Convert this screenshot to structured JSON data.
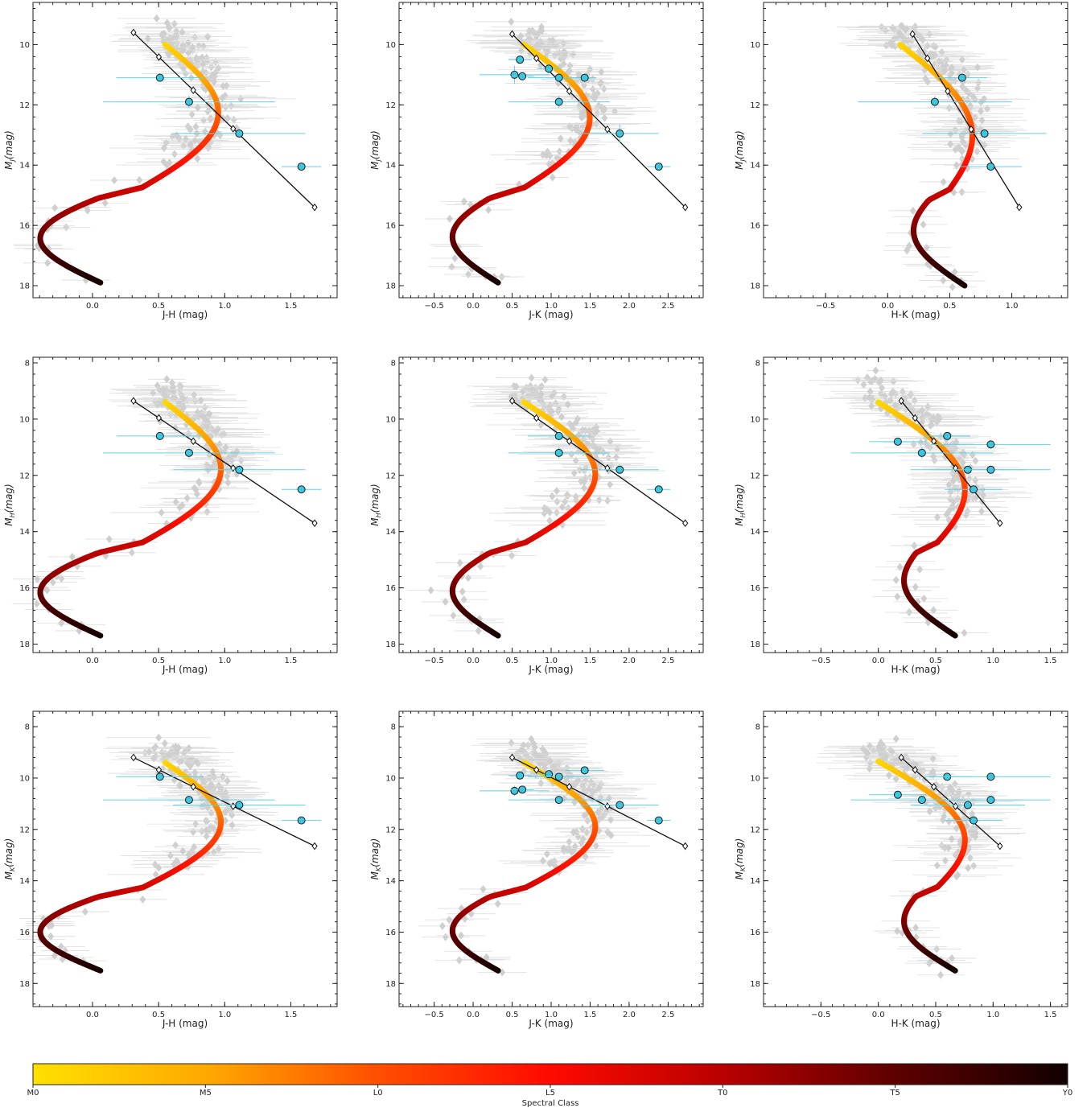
{
  "colors": {
    "sequence_start": "#ffd200",
    "sequence_mid": "#ff1a00",
    "sequence_end": "#140000",
    "field_points": "#cfcfcf",
    "highlight_points": "#3cc6e0",
    "reference_line": "#111111"
  },
  "colorbar": {
    "label": "Spectral Class",
    "ticks": [
      "M0",
      "M5",
      "L0",
      "L5",
      "T0",
      "T5",
      "Y0"
    ]
  },
  "chart_data": [
    {
      "type": "scatter",
      "xlabel": "J-H (mag)",
      "ylabel_base": "M",
      "ylabel_sub": "J",
      "ylabel_tail": "(mag)",
      "xlim": [
        -0.45,
        1.85
      ],
      "ylim": [
        18.4,
        8.6
      ],
      "xticks": [
        "0.0",
        "0.5",
        "1.0",
        "1.5"
      ],
      "xtick_values": [
        0,
        0.5,
        1.0,
        1.5
      ],
      "yticks": [
        "10",
        "12",
        "14",
        "16",
        "18"
      ],
      "ytick_values": [
        10,
        12,
        14,
        16,
        18
      ],
      "sequence": {
        "x0": 0.55,
        "y0": 10.0,
        "x1": 0.18,
        "y1": 17.9,
        "dx": 0.55,
        "dymid": 14.75,
        "a": -0.12,
        "b": -0.55
      },
      "line": {
        "x": [
          0.31,
          1.68
        ],
        "y": [
          9.6,
          15.4
        ]
      },
      "highlight": {
        "x": [
          0.51,
          0.73,
          1.11,
          1.58
        ],
        "y": [
          11.1,
          11.9,
          12.95,
          14.05
        ],
        "xerr": [
          0.33,
          0.65,
          0.5,
          0.15
        ],
        "yerr": [
          0.1,
          0.2,
          0.15,
          0.1
        ]
      }
    },
    {
      "type": "scatter",
      "xlabel": "J-K (mag)",
      "ylabel_base": "M",
      "ylabel_sub": "J",
      "ylabel_tail": "(mag)",
      "xlim": [
        -0.95,
        2.95
      ],
      "ylim": [
        18.4,
        8.6
      ],
      "xticks": [
        "−0.5",
        "0.0",
        "0.5",
        "1.0",
        "1.5",
        "2.0",
        "2.5"
      ],
      "xtick_values": [
        -0.5,
        0,
        0.5,
        1.0,
        1.5,
        2.0,
        2.5
      ],
      "yticks": [
        "10",
        "12",
        "14",
        "16",
        "18"
      ],
      "ytick_values": [
        10,
        12,
        14,
        16,
        18
      ],
      "sequence": {
        "x0": 0.65,
        "y0": 10.0,
        "x1": 0.42,
        "y1": 17.9,
        "dx": 0.95,
        "dymid": 14.7,
        "a": -0.1,
        "b": -0.65
      },
      "line": {
        "x": [
          0.5,
          2.72
        ],
        "y": [
          9.65,
          15.4
        ]
      },
      "highlight": {
        "x": [
          0.6,
          0.53,
          0.63,
          0.97,
          1.1,
          1.43,
          1.1,
          1.88,
          2.38
        ],
        "y": [
          10.5,
          11.0,
          11.05,
          10.8,
          11.1,
          11.1,
          11.9,
          12.95,
          14.05
        ],
        "xerr": [
          0.15,
          0.45,
          0.15,
          0.15,
          0.4,
          0.15,
          0.65,
          0.5,
          0.15
        ],
        "yerr": [
          0.1,
          0.3,
          0.1,
          0.15,
          0.15,
          0.1,
          0.2,
          0.3,
          0.1
        ]
      }
    },
    {
      "type": "scatter",
      "xlabel": "H-K (mag)",
      "ylabel_base": "M",
      "ylabel_sub": "J",
      "ylabel_tail": "(mag)",
      "xlim": [
        -1.0,
        1.45
      ],
      "ylim": [
        18.4,
        8.6
      ],
      "xticks": [
        "−0.5",
        "0.0",
        "0.5",
        "1.0"
      ],
      "xtick_values": [
        -0.5,
        0,
        0.5,
        1.0
      ],
      "yticks": [
        "10",
        "12",
        "14",
        "16",
        "18"
      ],
      "ytick_values": [
        10,
        12,
        14,
        16,
        18
      ],
      "sequence": {
        "x0": 0.1,
        "y0": 10.0,
        "x1": 0.22,
        "y1": 18.0,
        "dx": 0.4,
        "dymid": 14.7,
        "a": 0.4,
        "b": -0.3
      },
      "line": {
        "x": [
          0.2,
          1.06
        ],
        "y": [
          9.65,
          15.4
        ]
      },
      "highlight": {
        "x": [
          0.6,
          0.38,
          0.78,
          0.83
        ],
        "y": [
          11.1,
          11.9,
          12.95,
          14.05
        ],
        "xerr": [
          0.2,
          0.62,
          0.5,
          0.25
        ],
        "yerr": [
          0.1,
          0.2,
          0.15,
          0.1
        ]
      }
    },
    {
      "type": "scatter",
      "xlabel": "J-H (mag)",
      "ylabel_base": "M",
      "ylabel_sub": "H",
      "ylabel_tail": "(mag)",
      "xlim": [
        -0.45,
        1.85
      ],
      "ylim": [
        18.3,
        7.8
      ],
      "xticks": [
        "0.0",
        "0.5",
        "1.0",
        "1.5"
      ],
      "xtick_values": [
        0,
        0.5,
        1.0,
        1.5
      ],
      "yticks": [
        "8",
        "10",
        "12",
        "14",
        "16",
        "18"
      ],
      "ytick_values": [
        8,
        10,
        12,
        14,
        16,
        18
      ],
      "sequence": {
        "x0": 0.55,
        "y0": 9.4,
        "x1": 0.18,
        "y1": 17.7,
        "dx": 0.57,
        "dymid": 13.9,
        "a": -0.12,
        "b": -0.55
      },
      "line": {
        "x": [
          0.31,
          1.68
        ],
        "y": [
          9.35,
          13.7
        ]
      },
      "highlight": {
        "x": [
          0.51,
          0.73,
          1.11,
          1.58
        ],
        "y": [
          10.6,
          11.2,
          11.8,
          12.5
        ],
        "xerr": [
          0.33,
          0.65,
          0.5,
          0.15
        ],
        "yerr": [
          0.1,
          0.2,
          0.15,
          0.1
        ]
      }
    },
    {
      "type": "scatter",
      "xlabel": "J-K (mag)",
      "ylabel_base": "M",
      "ylabel_sub": "H",
      "ylabel_tail": "(mag)",
      "xlim": [
        -0.95,
        2.95
      ],
      "ylim": [
        18.3,
        7.8
      ],
      "xticks": [
        "−0.5",
        "0.0",
        "0.5",
        "1.0",
        "1.5",
        "2.0",
        "2.5"
      ],
      "xtick_values": [
        -0.5,
        0,
        0.5,
        1.0,
        1.5,
        2.0,
        2.5
      ],
      "yticks": [
        "8",
        "10",
        "12",
        "14",
        "16",
        "18"
      ],
      "ytick_values": [
        8,
        10,
        12,
        14,
        16,
        18
      ],
      "sequence": {
        "x0": 0.65,
        "y0": 9.4,
        "x1": 0.42,
        "y1": 17.7,
        "dx": 1.02,
        "dymid": 13.9,
        "a": -0.1,
        "b": -0.65
      },
      "line": {
        "x": [
          0.5,
          2.72
        ],
        "y": [
          9.35,
          13.7
        ]
      },
      "highlight": {
        "x": [
          1.1,
          1.1,
          1.88,
          2.38
        ],
        "y": [
          10.6,
          11.2,
          11.8,
          12.5
        ],
        "xerr": [
          0.4,
          0.65,
          0.5,
          0.15
        ],
        "yerr": [
          0.1,
          0.2,
          0.15,
          0.1
        ]
      }
    },
    {
      "type": "scatter",
      "xlabel": "H-K (mag)",
      "ylabel_base": "M",
      "ylabel_sub": "H",
      "ylabel_tail": "(mag)",
      "xlim": [
        -1.0,
        1.65
      ],
      "ylim": [
        18.3,
        7.8
      ],
      "xticks": [
        "−0.5",
        "0.0",
        "0.5",
        "1.0",
        "1.5"
      ],
      "xtick_values": [
        -0.5,
        0,
        0.5,
        1.0,
        1.5
      ],
      "yticks": [
        "8",
        "10",
        "12",
        "14",
        "16",
        "18"
      ],
      "ytick_values": [
        8,
        10,
        12,
        14,
        16,
        18
      ],
      "sequence": {
        "x0": 0.0,
        "y0": 9.4,
        "x1": 0.22,
        "y1": 17.7,
        "dx": 0.52,
        "dymid": 13.9,
        "a": 0.45,
        "b": -0.3
      },
      "line": {
        "x": [
          0.2,
          1.06
        ],
        "y": [
          9.35,
          13.7
        ]
      },
      "highlight": {
        "x": [
          0.17,
          0.38,
          0.6,
          0.98,
          0.78,
          0.98,
          0.83
        ],
        "y": [
          10.8,
          11.2,
          10.6,
          10.9,
          11.8,
          11.8,
          12.5
        ],
        "xerr": [
          0.25,
          0.62,
          0.2,
          0.52,
          0.5,
          0.52,
          0.25
        ],
        "yerr": [
          0.1,
          0.2,
          0.1,
          0.15,
          0.15,
          0.15,
          0.1
        ]
      }
    },
    {
      "type": "scatter",
      "xlabel": "J-H (mag)",
      "ylabel_base": "M",
      "ylabel_sub": "K",
      "ylabel_tail": "(mag)",
      "xlim": [
        -0.45,
        1.85
      ],
      "ylim": [
        18.9,
        7.4
      ],
      "xticks": [
        "0.0",
        "0.5",
        "1.0",
        "1.5"
      ],
      "xtick_values": [
        0,
        0.5,
        1.0,
        1.5
      ],
      "yticks": [
        "8",
        "10",
        "12",
        "14",
        "16",
        "18"
      ],
      "ytick_values": [
        8,
        10,
        12,
        14,
        16,
        18
      ],
      "sequence": {
        "x0": 0.55,
        "y0": 9.4,
        "x1": 0.18,
        "y1": 17.5,
        "dx": 0.57,
        "dymid": 13.6,
        "a": -0.12,
        "b": -0.55
      },
      "line": {
        "x": [
          0.31,
          1.68
        ],
        "y": [
          9.2,
          12.65
        ]
      },
      "highlight": {
        "x": [
          0.51,
          0.73,
          1.11,
          1.58
        ],
        "y": [
          9.95,
          10.85,
          11.05,
          11.65
        ],
        "xerr": [
          0.33,
          0.65,
          0.5,
          0.15
        ],
        "yerr": [
          0.1,
          0.15,
          0.15,
          0.1
        ]
      }
    },
    {
      "type": "scatter",
      "xlabel": "J-K (mag)",
      "ylabel_base": "M",
      "ylabel_sub": "K",
      "ylabel_tail": "(mag)",
      "xlim": [
        -0.95,
        2.95
      ],
      "ylim": [
        18.9,
        7.4
      ],
      "xticks": [
        "−0.5",
        "0.0",
        "0.5",
        "1.0",
        "1.5",
        "2.0",
        "2.5"
      ],
      "xtick_values": [
        -0.5,
        0,
        0.5,
        1.0,
        1.5,
        2.0,
        2.5
      ],
      "yticks": [
        "8",
        "10",
        "12",
        "14",
        "16",
        "18"
      ],
      "ytick_values": [
        8,
        10,
        12,
        14,
        16,
        18
      ],
      "sequence": {
        "x0": 0.65,
        "y0": 9.4,
        "x1": 0.42,
        "y1": 17.5,
        "dx": 1.02,
        "dymid": 13.6,
        "a": -0.1,
        "b": -0.65
      },
      "line": {
        "x": [
          0.5,
          2.72
        ],
        "y": [
          9.2,
          12.65
        ]
      },
      "highlight": {
        "x": [
          0.6,
          0.53,
          0.63,
          0.97,
          1.1,
          1.43,
          1.1,
          1.88,
          2.38
        ],
        "y": [
          9.9,
          10.5,
          10.45,
          9.85,
          9.95,
          9.7,
          10.85,
          11.05,
          11.65
        ],
        "xerr": [
          0.15,
          0.45,
          0.15,
          0.15,
          0.4,
          0.25,
          0.65,
          0.5,
          0.15
        ],
        "yerr": [
          0.1,
          0.2,
          0.1,
          0.1,
          0.15,
          0.1,
          0.15,
          0.15,
          0.1
        ]
      }
    },
    {
      "type": "scatter",
      "xlabel": "H-K (mag)",
      "ylabel_base": "M",
      "ylabel_sub": "K",
      "ylabel_tail": "(mag)",
      "xlim": [
        -1.0,
        1.65
      ],
      "ylim": [
        18.9,
        7.4
      ],
      "xticks": [
        "−0.5",
        "0.0",
        "0.5",
        "1.0",
        "1.5"
      ],
      "xtick_values": [
        -0.5,
        0,
        0.5,
        1.0,
        1.5
      ],
      "yticks": [
        "8",
        "10",
        "12",
        "14",
        "16",
        "18"
      ],
      "ytick_values": [
        8,
        10,
        12,
        14,
        16,
        18
      ],
      "sequence": {
        "x0": 0.0,
        "y0": 9.35,
        "x1": 0.22,
        "y1": 17.5,
        "dx": 0.52,
        "dymid": 13.6,
        "a": 0.45,
        "b": -0.3
      },
      "line": {
        "x": [
          0.2,
          1.06
        ],
        "y": [
          9.2,
          12.65
        ]
      },
      "highlight": {
        "x": [
          0.17,
          0.38,
          0.6,
          0.98,
          0.78,
          0.98,
          0.83
        ],
        "y": [
          10.65,
          10.85,
          9.95,
          9.95,
          11.05,
          10.85,
          11.65
        ],
        "xerr": [
          0.25,
          0.62,
          0.2,
          0.52,
          0.5,
          0.52,
          0.25
        ],
        "yerr": [
          0.1,
          0.15,
          0.1,
          0.1,
          0.15,
          0.1,
          0.1
        ]
      }
    }
  ]
}
